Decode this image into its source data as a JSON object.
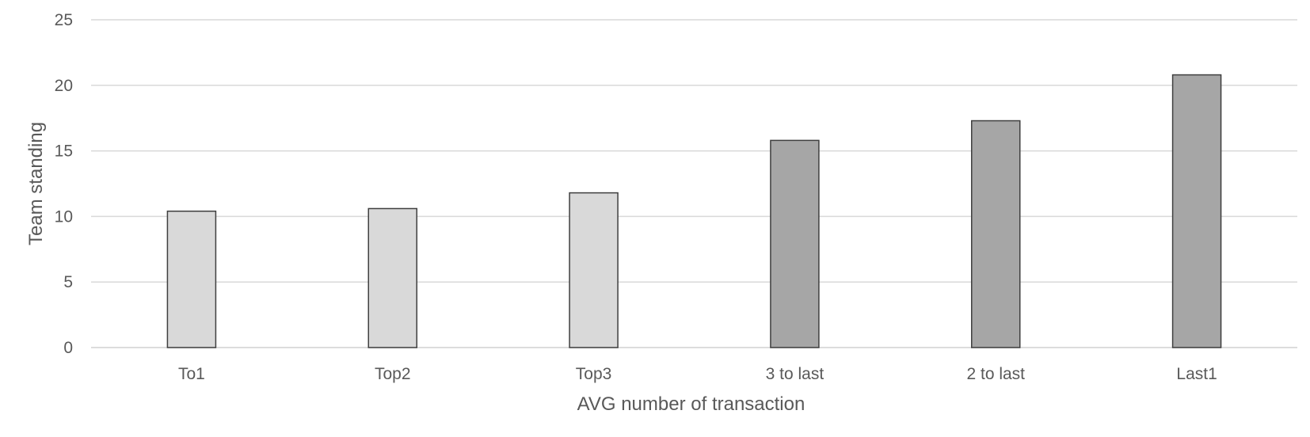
{
  "chart_data": {
    "type": "bar",
    "categories": [
      "To1",
      "Top2",
      "Top3",
      "3 to last",
      "2 to last",
      "Last1"
    ],
    "values": [
      10.4,
      10.6,
      11.8,
      15.8,
      17.3,
      20.8
    ],
    "bar_colors": [
      "#d9d9d9",
      "#d9d9d9",
      "#d9d9d9",
      "#a6a6a6",
      "#a6a6a6",
      "#a6a6a6"
    ],
    "title": "",
    "xlabel": "AVG number of transaction",
    "ylabel": "Team standing",
    "ylim": [
      0,
      25
    ],
    "yticks": [
      0,
      5,
      10,
      15,
      20,
      25
    ],
    "grid": true,
    "legend": "none"
  }
}
